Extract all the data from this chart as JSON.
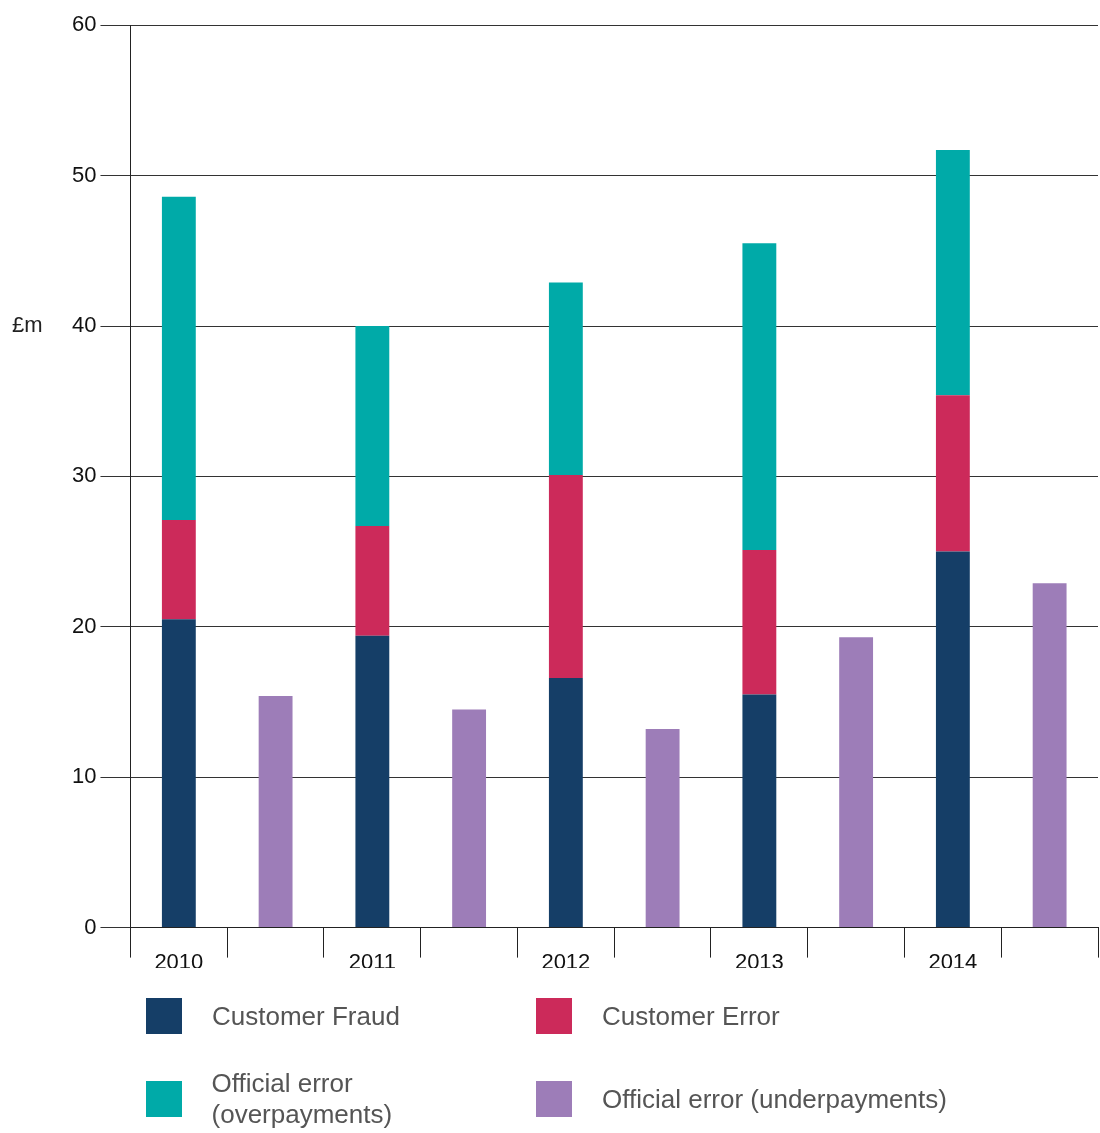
{
  "chart_data": {
    "type": "bar",
    "stacked": true,
    "ylabel": "£m",
    "categories": [
      "2010",
      null,
      "2011",
      null,
      "2012",
      null,
      "2013",
      null,
      "2014",
      null
    ],
    "series": [
      {
        "name": "Customer Fraud",
        "color": "#153e67",
        "values": [
          20.5,
          null,
          19.4,
          null,
          16.6,
          null,
          15.5,
          null,
          25.0,
          null
        ]
      },
      {
        "name": "Customer Error",
        "color": "#cc2a5a",
        "values": [
          6.6,
          null,
          7.3,
          null,
          13.5,
          null,
          9.6,
          null,
          10.4,
          null
        ]
      },
      {
        "name": "Official error (overpayments)",
        "color": "#00aaa8",
        "values": [
          21.5,
          null,
          13.3,
          null,
          12.8,
          null,
          20.4,
          null,
          16.3,
          null
        ]
      },
      {
        "name": "Official error (underpayments)",
        "color": "#9d7db8",
        "values": [
          null,
          15.4,
          null,
          14.5,
          null,
          13.2,
          null,
          19.3,
          null,
          22.9
        ]
      }
    ],
    "ylim": [
      0,
      60
    ],
    "yticks": [
      0,
      10,
      20,
      30,
      40,
      50,
      60
    ],
    "grid": "y",
    "legend": "bottom"
  }
}
